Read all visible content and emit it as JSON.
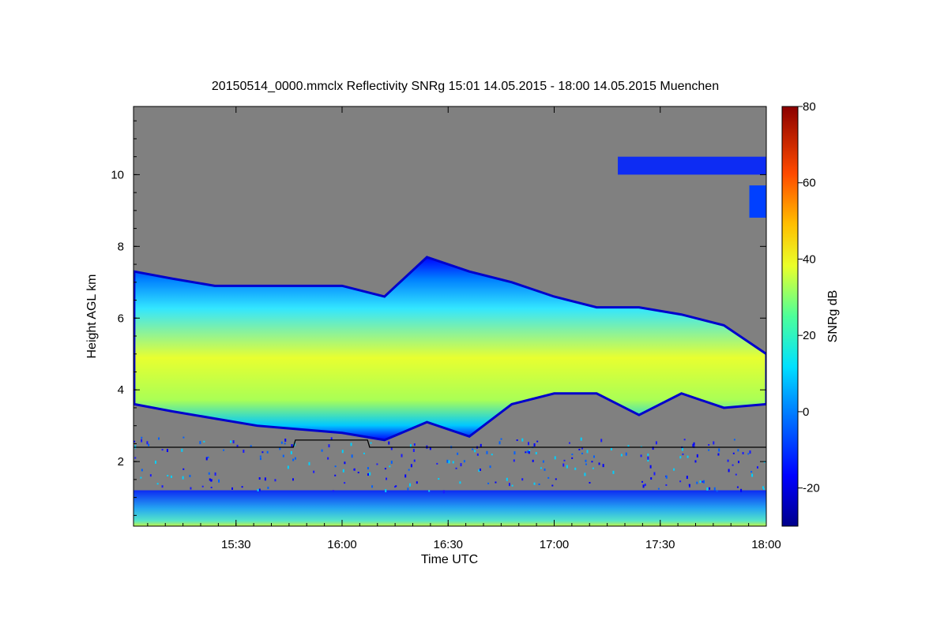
{
  "chart_data": {
    "type": "heatmap",
    "title": "20150514_0000.mmclx Reflectivity SNRg   15:01 14.05.2015 - 18:00 14.05.2015 Muenchen",
    "xlabel": "Time UTC",
    "ylabel": "Height AGL km",
    "colorbar_label": "SNRg dB",
    "xlim": [
      15.0167,
      18.0
    ],
    "ylim": [
      0.2,
      11.9
    ],
    "x_ticks": [
      {
        "value": 15.5,
        "label": "15:30"
      },
      {
        "value": 16.0,
        "label": "16:00"
      },
      {
        "value": 16.5,
        "label": "16:30"
      },
      {
        "value": 17.0,
        "label": "17:00"
      },
      {
        "value": 17.5,
        "label": "17:30"
      },
      {
        "value": 18.0,
        "label": "18:00"
      }
    ],
    "y_ticks": [
      {
        "value": 2,
        "label": "2"
      },
      {
        "value": 4,
        "label": "4"
      },
      {
        "value": 6,
        "label": "6"
      },
      {
        "value": 8,
        "label": "8"
      },
      {
        "value": 10,
        "label": "10"
      }
    ],
    "colorbar_range": [
      -30,
      80
    ],
    "colorbar_ticks": [
      {
        "value": -20,
        "label": "-20"
      },
      {
        "value": 0,
        "label": "0"
      },
      {
        "value": 20,
        "label": "20"
      },
      {
        "value": 40,
        "label": "40"
      },
      {
        "value": 60,
        "label": "60"
      },
      {
        "value": 80,
        "label": "80"
      }
    ],
    "background_color": "#808080",
    "line_color": "#000000",
    "cloud_base_line": [
      {
        "time": 15.0167,
        "height": 2.4
      },
      {
        "time": 15.77,
        "height": 2.4
      },
      {
        "time": 15.78,
        "height": 2.6
      },
      {
        "time": 16.12,
        "height": 2.6
      },
      {
        "time": 16.13,
        "height": 2.4
      },
      {
        "time": 18.0,
        "height": 2.4
      }
    ],
    "cloud_top_profile": [
      {
        "time": 15.02,
        "top": 7.3,
        "base": 3.6
      },
      {
        "time": 15.2,
        "top": 7.1,
        "base": 3.4
      },
      {
        "time": 15.4,
        "top": 6.9,
        "base": 3.2
      },
      {
        "time": 15.6,
        "top": 6.9,
        "base": 3.0
      },
      {
        "time": 15.8,
        "top": 6.9,
        "base": 2.9
      },
      {
        "time": 16.0,
        "top": 6.9,
        "base": 2.8
      },
      {
        "time": 16.2,
        "top": 6.6,
        "base": 2.6
      },
      {
        "time": 16.4,
        "top": 7.7,
        "base": 3.1
      },
      {
        "time": 16.6,
        "top": 7.3,
        "base": 2.7
      },
      {
        "time": 16.8,
        "top": 7.0,
        "base": 3.6
      },
      {
        "time": 17.0,
        "top": 6.6,
        "base": 3.9
      },
      {
        "time": 17.2,
        "top": 6.3,
        "base": 3.9
      },
      {
        "time": 17.4,
        "top": 6.3,
        "base": 3.3
      },
      {
        "time": 17.6,
        "top": 6.1,
        "base": 3.9
      },
      {
        "time": 17.8,
        "top": 5.8,
        "base": 3.5
      },
      {
        "time": 18.0,
        "top": 5.0,
        "base": 3.6
      }
    ],
    "core_snr_db": 35,
    "cirrus_layer": {
      "time_start": 17.3,
      "time_end": 18.0,
      "height_bottom": 8.8,
      "height_top": 10.5,
      "snr_db": -15
    },
    "boundary_layer": {
      "height_bottom": 0.2,
      "height_top": 1.2,
      "snr_db": 5
    }
  }
}
